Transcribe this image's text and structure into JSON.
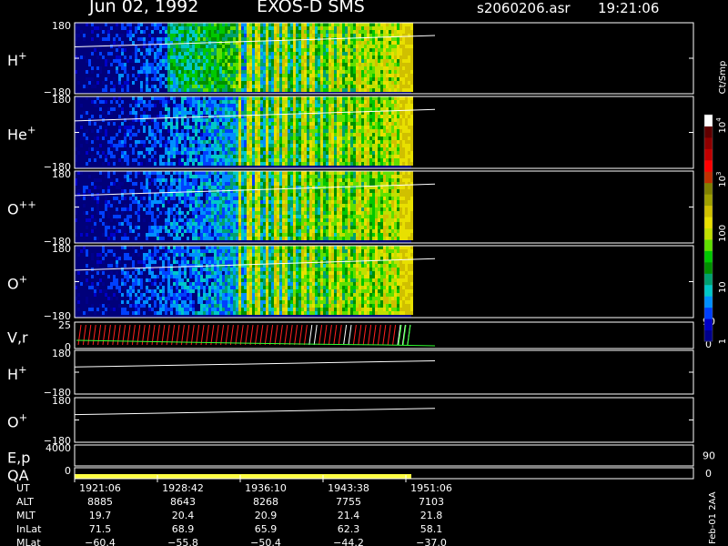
{
  "header": {
    "date": "Jun 02, 1992",
    "mission": "EXOS-D SMS",
    "file": "s2060206.asr",
    "time": "19:21:06"
  },
  "colorbar": {
    "unit": "Ct/Smp",
    "ticks": [
      {
        "label": "1",
        "value": 1
      },
      {
        "label": "10",
        "value": 10
      },
      {
        "label": "100",
        "value": 100
      },
      {
        "label": "10",
        "exp": "3",
        "value": 1000
      },
      {
        "label": "10",
        "exp": "4",
        "value": 10000
      }
    ],
    "colors": [
      "#00008b",
      "#0000c8",
      "#0040ff",
      "#0090ff",
      "#00c8c8",
      "#00a070",
      "#009000",
      "#00c800",
      "#60e000",
      "#c0e000",
      "#e8e000",
      "#d0c000",
      "#a0a000",
      "#808000",
      "#c03000",
      "#ff0000",
      "#c00000",
      "#900000",
      "#600000",
      "#ffffff"
    ]
  },
  "chart_data": {
    "type": "heatmap",
    "panels": [
      {
        "label": "H",
        "sup": "+",
        "yticks": [
          "180",
          "−180"
        ],
        "kind": "spectrogram",
        "ylim": [
          -180,
          180
        ]
      },
      {
        "label": "He",
        "sup": "+",
        "yticks": [
          "180",
          "−180"
        ],
        "kind": "spectrogram",
        "ylim": [
          -180,
          180
        ]
      },
      {
        "label": "O",
        "sup": "++",
        "yticks": [
          "180",
          "−180"
        ],
        "kind": "spectrogram",
        "ylim": [
          -180,
          180
        ]
      },
      {
        "label": "O",
        "sup": "+",
        "yticks": [
          "180",
          "−180"
        ],
        "kind": "spectrogram",
        "ylim": [
          -180,
          180
        ]
      },
      {
        "label": "V,r",
        "sup": "",
        "yticks": [
          "25",
          "0"
        ],
        "right_ticks": [
          "90",
          "0"
        ],
        "kind": "vr"
      },
      {
        "label": "H",
        "sup": "+",
        "yticks": [
          "180",
          "−180"
        ],
        "kind": "line"
      },
      {
        "label": "O",
        "sup": "+",
        "yticks": [
          "180",
          "−180"
        ],
        "kind": "line"
      },
      {
        "label": "E,p",
        "sup": "",
        "yticks": [
          "4000"
        ],
        "right_ticks": [
          "90"
        ],
        "kind": "empty"
      },
      {
        "label": "QA",
        "sup": "",
        "yticks": [
          "0"
        ],
        "right_ticks": [
          "0"
        ],
        "kind": "qa"
      }
    ],
    "time_ticks": [
      "1921:06",
      "1928:42",
      "1936:10",
      "1943:38",
      "1951:06"
    ],
    "ephemeris": [
      {
        "name": "UT",
        "values": [
          "1921:06",
          "1928:42",
          "1936:10",
          "1943:38",
          "1951:06"
        ]
      },
      {
        "name": "ALT",
        "values": [
          "8885",
          "8643",
          "8268",
          "7755",
          "7103"
        ]
      },
      {
        "name": "MLT",
        "values": [
          "19.7",
          "20.4",
          "20.9",
          "21.4",
          "21.8"
        ]
      },
      {
        "name": "InLat",
        "values": [
          "71.5",
          "68.9",
          "65.9",
          "62.3",
          "58.1"
        ]
      },
      {
        "name": "MLat",
        "values": [
          "−60.4",
          "−55.8",
          "−50.4",
          "−44.2",
          "−37.0"
        ]
      }
    ]
  },
  "footer": {
    "stamp": "Feb-01 2AA"
  }
}
